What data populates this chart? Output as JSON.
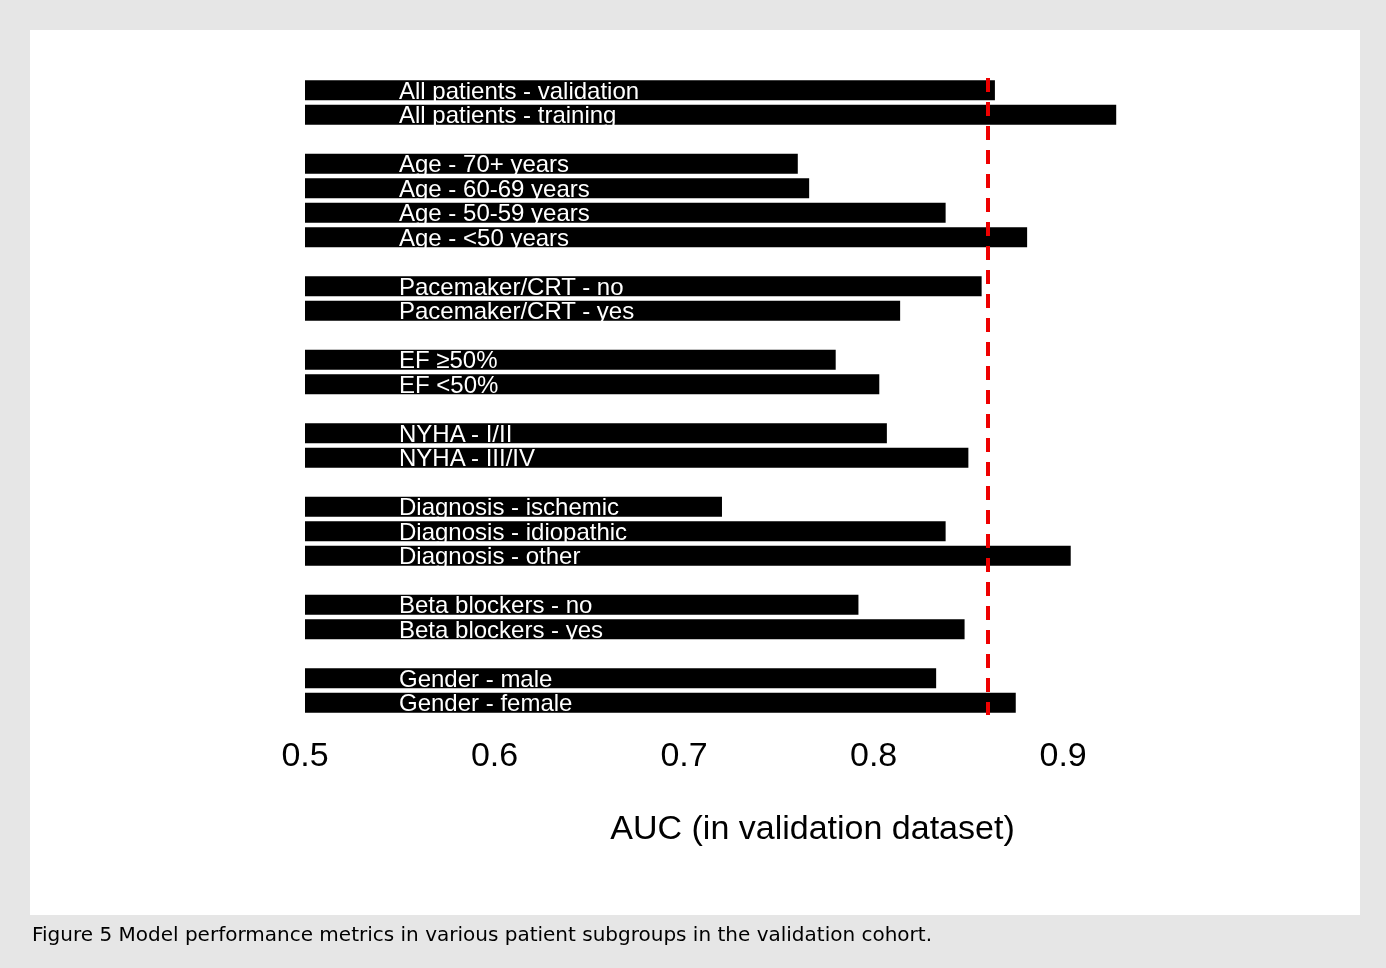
{
  "chart_data": {
    "type": "bar",
    "orientation": "horizontal",
    "xlabel": "AUC (in validation dataset)",
    "categories": [
      "All patients - validation",
      "All patients - training",
      null,
      "Age - 70+ years",
      "Age - 60-69 years",
      "Age - 50-59 years",
      "Age - <50 years",
      null,
      "Pacemaker/CRT - no",
      "Pacemaker/CRT - yes",
      null,
      "EF ≥50%",
      "EF <50%",
      null,
      "NYHA - I/II",
      "NYHA - III/IV",
      null,
      "Diagnosis - ischemic",
      "Diagnosis - idiopathic",
      "Diagnosis - other",
      null,
      "Beta blockers - no",
      "Beta blockers - yes",
      null,
      "Gender - male",
      "Gender - female"
    ],
    "values": [
      0.864,
      0.928,
      null,
      0.76,
      0.766,
      0.838,
      0.881,
      null,
      0.857,
      0.814,
      null,
      0.78,
      0.803,
      null,
      0.807,
      0.85,
      null,
      0.72,
      0.838,
      0.904,
      null,
      0.792,
      0.848,
      null,
      0.833,
      0.875
    ],
    "color": "#000000",
    "xlim": [
      0.5,
      0.93
    ],
    "xticks": [
      0.5,
      0.6,
      0.7,
      0.8,
      0.9
    ],
    "grid": false,
    "ref_lines": [
      {
        "axis": "x",
        "value": 0.865,
        "color": "#ee0000",
        "line_style": "dashed"
      }
    ],
    "annotations": [
      "Figure 5  Model performance metrics in various patient subgroups in the validation cohort."
    ]
  }
}
